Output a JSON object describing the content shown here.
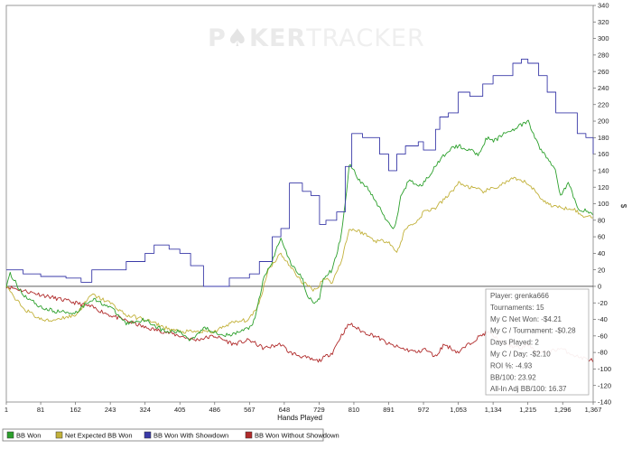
{
  "watermark": {
    "bold": "P",
    "chip": "♠",
    "bold2": "KER",
    "light": "TRACKER"
  },
  "chart_data": {
    "type": "line",
    "title": "",
    "xlabel": "Hands Played",
    "ylabel": "$",
    "xlim": [
      1,
      1367
    ],
    "ylim": [
      -140,
      340
    ],
    "x_ticks": [
      "1",
      "81",
      "162",
      "243",
      "324",
      "405",
      "486",
      "567",
      "648",
      "729",
      "810",
      "891",
      "972",
      "1,053",
      "1,134",
      "1,215",
      "1,296",
      "1,367"
    ],
    "y_ticks": [
      -140,
      -120,
      -100,
      -80,
      -60,
      -40,
      -20,
      0,
      20,
      40,
      60,
      80,
      100,
      120,
      140,
      160,
      180,
      200,
      220,
      240,
      260,
      280,
      300,
      320,
      340
    ],
    "grid": false,
    "legend_position": "bottom",
    "series": [
      {
        "name": "BB Won",
        "color": "#2ca02c",
        "type": "noisy",
        "points": [
          [
            1,
            0
          ],
          [
            10,
            15
          ],
          [
            40,
            -10
          ],
          [
            81,
            -25
          ],
          [
            110,
            -30
          ],
          [
            162,
            -32
          ],
          [
            200,
            -15
          ],
          [
            243,
            -25
          ],
          [
            280,
            -45
          ],
          [
            324,
            -40
          ],
          [
            370,
            -55
          ],
          [
            405,
            -55
          ],
          [
            430,
            -65
          ],
          [
            460,
            -50
          ],
          [
            486,
            -55
          ],
          [
            520,
            -60
          ],
          [
            567,
            -50
          ],
          [
            580,
            -40
          ],
          [
            600,
            10
          ],
          [
            620,
            30
          ],
          [
            640,
            60
          ],
          [
            660,
            30
          ],
          [
            690,
            10
          ],
          [
            700,
            -10
          ],
          [
            720,
            -20
          ],
          [
            730,
            -15
          ],
          [
            740,
            10
          ],
          [
            760,
            20
          ],
          [
            780,
            60
          ],
          [
            790,
            100
          ],
          [
            800,
            150
          ],
          [
            820,
            130
          ],
          [
            840,
            120
          ],
          [
            870,
            95
          ],
          [
            891,
            75
          ],
          [
            905,
            70
          ],
          [
            920,
            110
          ],
          [
            940,
            130
          ],
          [
            960,
            120
          ],
          [
            972,
            125
          ],
          [
            1000,
            145
          ],
          [
            1030,
            165
          ],
          [
            1053,
            170
          ],
          [
            1080,
            165
          ],
          [
            1100,
            160
          ],
          [
            1120,
            180
          ],
          [
            1134,
            175
          ],
          [
            1160,
            185
          ],
          [
            1180,
            190
          ],
          [
            1200,
            195
          ],
          [
            1215,
            200
          ],
          [
            1240,
            170
          ],
          [
            1260,
            155
          ],
          [
            1280,
            140
          ],
          [
            1290,
            110
          ],
          [
            1310,
            125
          ],
          [
            1330,
            95
          ],
          [
            1367,
            88
          ]
        ]
      },
      {
        "name": "Net Expected BB Won",
        "color": "#c2b13a",
        "type": "noisy",
        "points": [
          [
            1,
            0
          ],
          [
            20,
            -15
          ],
          [
            50,
            -30
          ],
          [
            81,
            -40
          ],
          [
            100,
            -42
          ],
          [
            130,
            -38
          ],
          [
            162,
            -35
          ],
          [
            200,
            -10
          ],
          [
            243,
            -20
          ],
          [
            280,
            -35
          ],
          [
            324,
            -40
          ],
          [
            370,
            -50
          ],
          [
            405,
            -55
          ],
          [
            440,
            -55
          ],
          [
            486,
            -55
          ],
          [
            520,
            -45
          ],
          [
            567,
            -40
          ],
          [
            590,
            -20
          ],
          [
            610,
            20
          ],
          [
            640,
            40
          ],
          [
            660,
            25
          ],
          [
            690,
            5
          ],
          [
            720,
            -5
          ],
          [
            740,
            10
          ],
          [
            760,
            5
          ],
          [
            780,
            30
          ],
          [
            800,
            70
          ],
          [
            830,
            65
          ],
          [
            860,
            55
          ],
          [
            891,
            55
          ],
          [
            910,
            40
          ],
          [
            930,
            70
          ],
          [
            960,
            80
          ],
          [
            972,
            90
          ],
          [
            1000,
            95
          ],
          [
            1030,
            110
          ],
          [
            1053,
            125
          ],
          [
            1080,
            120
          ],
          [
            1110,
            115
          ],
          [
            1134,
            118
          ],
          [
            1160,
            125
          ],
          [
            1180,
            130
          ],
          [
            1215,
            125
          ],
          [
            1240,
            110
          ],
          [
            1260,
            100
          ],
          [
            1290,
            95
          ],
          [
            1320,
            95
          ],
          [
            1340,
            85
          ],
          [
            1367,
            85
          ]
        ]
      },
      {
        "name": "BB Won With Showdown",
        "color": "#3a3aa8",
        "type": "step",
        "points": [
          [
            1,
            20
          ],
          [
            40,
            15
          ],
          [
            81,
            12
          ],
          [
            140,
            10
          ],
          [
            162,
            10
          ],
          [
            175,
            5
          ],
          [
            200,
            20
          ],
          [
            243,
            20
          ],
          [
            280,
            30
          ],
          [
            324,
            40
          ],
          [
            345,
            50
          ],
          [
            380,
            45
          ],
          [
            405,
            40
          ],
          [
            430,
            25
          ],
          [
            460,
            0
          ],
          [
            520,
            10
          ],
          [
            567,
            15
          ],
          [
            590,
            30
          ],
          [
            620,
            60
          ],
          [
            640,
            70
          ],
          [
            660,
            125
          ],
          [
            690,
            115
          ],
          [
            710,
            110
          ],
          [
            730,
            75
          ],
          [
            745,
            80
          ],
          [
            770,
            90
          ],
          [
            790,
            145
          ],
          [
            805,
            185
          ],
          [
            830,
            180
          ],
          [
            870,
            160
          ],
          [
            891,
            140
          ],
          [
            910,
            160
          ],
          [
            930,
            170
          ],
          [
            960,
            175
          ],
          [
            972,
            165
          ],
          [
            1000,
            190
          ],
          [
            1010,
            205
          ],
          [
            1030,
            210
          ],
          [
            1053,
            235
          ],
          [
            1080,
            230
          ],
          [
            1110,
            245
          ],
          [
            1134,
            255
          ],
          [
            1160,
            255
          ],
          [
            1180,
            270
          ],
          [
            1200,
            275
          ],
          [
            1215,
            270
          ],
          [
            1240,
            255
          ],
          [
            1260,
            235
          ],
          [
            1280,
            210
          ],
          [
            1300,
            210
          ],
          [
            1330,
            185
          ],
          [
            1350,
            180
          ],
          [
            1367,
            160
          ]
        ]
      },
      {
        "name": "BB Won Without Showdown",
        "color": "#b02a2a",
        "type": "noisy",
        "points": [
          [
            1,
            0
          ],
          [
            40,
            -5
          ],
          [
            81,
            -10
          ],
          [
            120,
            -15
          ],
          [
            162,
            -20
          ],
          [
            200,
            -25
          ],
          [
            243,
            -35
          ],
          [
            300,
            -45
          ],
          [
            324,
            -50
          ],
          [
            370,
            -55
          ],
          [
            405,
            -60
          ],
          [
            440,
            -65
          ],
          [
            486,
            -60
          ],
          [
            530,
            -70
          ],
          [
            567,
            -65
          ],
          [
            600,
            -75
          ],
          [
            640,
            -70
          ],
          [
            660,
            -80
          ],
          [
            690,
            -85
          ],
          [
            720,
            -90
          ],
          [
            729,
            -90
          ],
          [
            760,
            -80
          ],
          [
            780,
            -60
          ],
          [
            800,
            -45
          ],
          [
            830,
            -55
          ],
          [
            860,
            -60
          ],
          [
            891,
            -70
          ],
          [
            920,
            -75
          ],
          [
            960,
            -80
          ],
          [
            972,
            -75
          ],
          [
            1000,
            -85
          ],
          [
            1020,
            -70
          ],
          [
            1053,
            -80
          ],
          [
            1090,
            -65
          ],
          [
            1120,
            -55
          ],
          [
            1134,
            -60
          ],
          [
            1160,
            -70
          ],
          [
            1200,
            -75
          ],
          [
            1215,
            -70
          ],
          [
            1240,
            -80
          ],
          [
            1260,
            -80
          ],
          [
            1290,
            -75
          ],
          [
            1330,
            -85
          ],
          [
            1367,
            -90
          ]
        ]
      }
    ]
  },
  "info_box": {
    "lines": [
      "Player: grenka666",
      "Tournaments: 15",
      "My C Net Won: -$4.21",
      "My C / Tournament: -$0.28",
      "Days Played: 2",
      "My C / Day: -$2.10",
      "ROI %: -4.93",
      "BB/100: 23.92",
      "All-In Adj BB/100: 16.37"
    ]
  },
  "legend": [
    {
      "label": "BB Won",
      "color": "#2ca02c"
    },
    {
      "label": "Net Expected BB Won",
      "color": "#c2b13a"
    },
    {
      "label": "BB Won With Showdown",
      "color": "#3a3aa8"
    },
    {
      "label": "BB Won Without Showdown",
      "color": "#b02a2a"
    }
  ]
}
